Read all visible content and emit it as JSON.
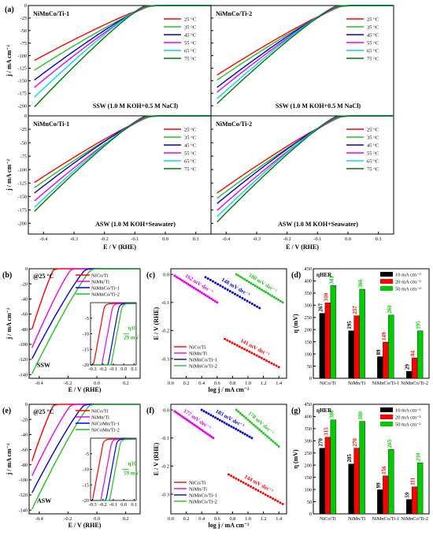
{
  "figure": {
    "panel_letters": [
      "(a)",
      "(b)",
      "(c)",
      "(d)",
      "(e)",
      "(f)",
      "(g)"
    ]
  },
  "colors": {
    "25": "#ff0000",
    "35": "#22c322",
    "45": "#0000dd",
    "55": "#ee00ee",
    "65": "#00dddd",
    "75": "#007a00",
    "NiCo/Ti": "#ff0000",
    "NiMn/Ti": "#ee00ee",
    "NiMnCo/Ti-1": "#0000dd",
    "NiMnCo/Ti-2": "#22c322",
    "bar10": "#000000",
    "bar20": "#ff0000",
    "bar50": "#00cc00"
  },
  "chart_data": [
    {
      "id": "a1",
      "type": "line",
      "title": "NiMnCo/Ti-1",
      "subtitle": "SSW (1.0 M KOH+0.5 M NaCl)",
      "ylabel": "j / mA cm⁻²",
      "xlim": [
        -0.45,
        0.15
      ],
      "ylim": [
        -220,
        0
      ],
      "xticks": [],
      "yticks": [
        0,
        -25,
        -50,
        -75,
        -100,
        -125,
        -150,
        -175,
        -200
      ],
      "legend_position": "top-right",
      "series": [
        {
          "name": "25 °C",
          "onset": -0.05,
          "jmin": -110
        },
        {
          "name": "35 °C",
          "onset": -0.05,
          "jmin": -130
        },
        {
          "name": "45 °C",
          "onset": -0.06,
          "jmin": -150
        },
        {
          "name": "55 °C",
          "onset": -0.06,
          "jmin": -165
        },
        {
          "name": "65 °C",
          "onset": -0.07,
          "jmin": -185
        },
        {
          "name": "75 °C",
          "onset": -0.07,
          "jmin": -205
        }
      ]
    },
    {
      "id": "a2",
      "type": "line",
      "title": "NiMnCo/Ti-2",
      "subtitle": "SSW (1.0 M KOH+0.5 M NaCl)",
      "xlim": [
        -0.45,
        0.15
      ],
      "ylim": [
        -220,
        0
      ],
      "xticks": [],
      "yticks": [],
      "legend_position": "top-right",
      "series": [
        {
          "name": "25 °C",
          "onset": -0.02,
          "jmin": -140
        },
        {
          "name": "35 °C",
          "onset": -0.02,
          "jmin": -150
        },
        {
          "name": "45 °C",
          "onset": -0.03,
          "jmin": -165
        },
        {
          "name": "55 °C",
          "onset": -0.03,
          "jmin": -175
        },
        {
          "name": "65 °C",
          "onset": -0.04,
          "jmin": -188
        },
        {
          "name": "75 °C",
          "onset": -0.04,
          "jmin": -198
        }
      ]
    },
    {
      "id": "a3",
      "type": "line",
      "title": "NiMnCo/Ti-1",
      "subtitle": "ASW (1.0 M KOH+Seawater)",
      "ylabel": "j / mA cm⁻²",
      "xlabel": "E / V (RHE)",
      "xlim": [
        -0.45,
        0.15
      ],
      "ylim": [
        -220,
        0
      ],
      "xticks": [
        -0.4,
        -0.3,
        -0.2,
        -0.1,
        0.0,
        0.1
      ],
      "yticks": [
        0,
        -25,
        -50,
        -75,
        -100,
        -125,
        -150,
        -175,
        -200
      ],
      "legend_position": "top-right",
      "series": [
        {
          "name": "25 °C",
          "onset": -0.05,
          "jmin": -125
        },
        {
          "name": "35 °C",
          "onset": -0.05,
          "jmin": -135
        },
        {
          "name": "45 °C",
          "onset": -0.06,
          "jmin": -145
        },
        {
          "name": "55 °C",
          "onset": -0.06,
          "jmin": -160
        },
        {
          "name": "65 °C",
          "onset": -0.07,
          "jmin": -172
        },
        {
          "name": "75 °C",
          "onset": -0.07,
          "jmin": -180
        }
      ]
    },
    {
      "id": "a4",
      "type": "line",
      "title": "NiMnCo/Ti-2",
      "subtitle": "ASW (1.0 M KOH+Seawater)",
      "xlabel": "E / V (RHE)",
      "xlim": [
        -0.45,
        0.15
      ],
      "ylim": [
        -220,
        0
      ],
      "xticks": [
        -0.4,
        -0.3,
        -0.2,
        -0.1,
        0.0,
        0.1
      ],
      "yticks": [],
      "legend_position": "top-right",
      "series": [
        {
          "name": "25 °C",
          "onset": -0.02,
          "jmin": -145
        },
        {
          "name": "35 °C",
          "onset": -0.02,
          "jmin": -155
        },
        {
          "name": "45 °C",
          "onset": -0.03,
          "jmin": -165
        },
        {
          "name": "55 °C",
          "onset": -0.03,
          "jmin": -178
        },
        {
          "name": "65 °C",
          "onset": -0.04,
          "jmin": -190
        },
        {
          "name": "75 °C",
          "onset": -0.04,
          "jmin": -200
        }
      ]
    },
    {
      "id": "b",
      "type": "line",
      "title": "@25 °C",
      "subtitle": "SSW",
      "ylabel": "j / mA cm⁻²",
      "xlabel": "E / V (RHE)",
      "xlim": [
        -0.47,
        0.3
      ],
      "ylim": [
        -145,
        0
      ],
      "xticks": [
        -0.4,
        -0.2,
        0.0,
        0.2
      ],
      "yticks": [
        0,
        -20,
        -40,
        -60,
        -80,
        -100,
        -120,
        -140
      ],
      "legend_position": "top-right",
      "series": [
        {
          "name": "NiCo/Ti",
          "onset": -0.3,
          "jmin": -80
        },
        {
          "name": "NiMn/Ti",
          "onset": -0.18,
          "jmin": -105
        },
        {
          "name": "NiMnCo/Ti-1",
          "onset": -0.08,
          "jmin": -120
        },
        {
          "name": "NiMnCo/Ti-2",
          "onset": -0.04,
          "jmin": -140
        }
      ],
      "inset": {
        "xlim": [
          -0.32,
          0.12
        ],
        "ylim": [
          -20,
          0
        ],
        "xticks": [
          -0.3,
          -0.2,
          -0.1,
          0.0,
          0.1
        ],
        "yticks": [
          -5,
          -10,
          -15,
          -20
        ],
        "label": "η10",
        "annotation": "29 mV",
        "onsets": [
          -0.19,
          -0.11,
          -0.05,
          -0.02
        ]
      }
    },
    {
      "id": "c",
      "type": "line",
      "ylabel": "E / V (RHE)",
      "xlabel": "log j / mA cm⁻²",
      "xlim": [
        0.0,
        1.5
      ],
      "ylim": [
        -0.37,
        0.02
      ],
      "xticks": [
        0.0,
        0.2,
        0.4,
        0.6,
        0.8,
        1.0,
        1.2,
        1.4
      ],
      "yticks": [
        0.0,
        -0.1,
        -0.2,
        -0.3
      ],
      "legend_position": "bottom-left",
      "series": [
        {
          "name": "NiCo/Ti",
          "x": [
            0.7,
            1.4
          ],
          "y": [
            -0.23,
            -0.33
          ],
          "slope_label": "141 mV dec⁻¹"
        },
        {
          "name": "NiMn/Ti",
          "x": [
            0.05,
            0.6
          ],
          "y": [
            -0.005,
            -0.1
          ],
          "slope_label": "162 mV dec⁻¹"
        },
        {
          "name": "NiMnCo/Ti-1",
          "x": [
            0.45,
            1.15
          ],
          "y": [
            -0.01,
            -0.12
          ],
          "slope_label": "148 mV dec⁻¹"
        },
        {
          "name": "NiMnCo/Ti-2",
          "x": [
            0.85,
            1.45
          ],
          "y": [
            0.0,
            -0.1
          ],
          "slope_label": "180 mV dec⁻¹"
        }
      ]
    },
    {
      "id": "d",
      "type": "bar",
      "title": "ηHER",
      "ylabel": "η (mV)",
      "categories": [
        "NiCo/Ti",
        "NiMn/Ti",
        "NiMnCo/Ti-1",
        "NiMnCo/Ti-2"
      ],
      "ylim": [
        0,
        450
      ],
      "yticks": [
        0,
        50,
        100,
        150,
        200,
        250,
        300,
        350,
        400,
        450
      ],
      "legend_position": "top-right",
      "series": [
        {
          "name": "10 mA cm⁻²",
          "values": [
            267,
            195,
            89,
            29
          ]
        },
        {
          "name": "20 mA cm⁻²",
          "values": [
            310,
            257,
            149,
            84
          ]
        },
        {
          "name": "50 mA cm⁻²",
          "values": [
            381,
            366,
            260,
            195
          ]
        }
      ]
    },
    {
      "id": "e",
      "type": "line",
      "title": "@25 °C",
      "subtitle": "ASW",
      "ylabel": "j / mA cm⁻²",
      "xlabel": "E / V (RHE)",
      "xlim": [
        -0.47,
        0.3
      ],
      "ylim": [
        -145,
        0
      ],
      "xticks": [
        -0.4,
        -0.2,
        0.0,
        0.2
      ],
      "yticks": [
        0,
        -20,
        -40,
        -60,
        -80,
        -100,
        -120,
        -140
      ],
      "legend_position": "top-right",
      "series": [
        {
          "name": "NiCo/Ti",
          "onset": -0.3,
          "jmin": -75
        },
        {
          "name": "NiMn/Ti",
          "onset": -0.18,
          "jmin": -95
        },
        {
          "name": "NiCoMn/Ti-1",
          "onset": -0.09,
          "jmin": -118
        },
        {
          "name": "NiCoMn/Ti-2",
          "onset": -0.05,
          "jmin": -140
        }
      ],
      "inset": {
        "xlim": [
          -0.32,
          0.12
        ],
        "ylim": [
          -20,
          0
        ],
        "xticks": [
          -0.3,
          -0.2,
          -0.1,
          0.0,
          0.1
        ],
        "yticks": [
          -5,
          -10,
          -15,
          -20
        ],
        "label": "η10",
        "annotation": "59 mV",
        "onsets": [
          -0.2,
          -0.12,
          -0.07,
          -0.035
        ]
      }
    },
    {
      "id": "f",
      "type": "line",
      "ylabel": "E / V (RHE)",
      "xlabel": "log j / mA cm⁻²",
      "xlim": [
        0.0,
        1.5
      ],
      "ylim": [
        -0.37,
        0.02
      ],
      "xticks": [
        0.0,
        0.2,
        0.4,
        0.6,
        0.8,
        1.0,
        1.2,
        1.4
      ],
      "yticks": [
        0.0,
        -0.1,
        -0.2,
        -0.3
      ],
      "legend_position": "bottom-left",
      "series": [
        {
          "name": "NiCo/Ti",
          "x": [
            0.75,
            1.45
          ],
          "y": [
            -0.23,
            -0.335
          ],
          "slope_label": "144 mV dec⁻¹"
        },
        {
          "name": "NiMn/Ti",
          "x": [
            0.05,
            0.55
          ],
          "y": [
            -0.005,
            -0.1
          ],
          "slope_label": "177 mV dec⁻¹"
        },
        {
          "name": "NiMnCo/Ti-1",
          "x": [
            0.4,
            1.05
          ],
          "y": [
            0.0,
            -0.1
          ],
          "slope_label": "183 mV dec⁻¹"
        },
        {
          "name": "NiMnCo/Ti-2",
          "x": [
            0.85,
            1.4
          ],
          "y": [
            0.0,
            -0.13
          ],
          "slope_label": "170 mV dec⁻¹"
        }
      ]
    },
    {
      "id": "g",
      "type": "bar",
      "title": "ηHER",
      "ylabel": "η (mV)",
      "categories": [
        "NiCo/Ti",
        "NiMn/Ti",
        "NiMnCo/Ti-1",
        "NiMnCo/Ti-2"
      ],
      "ylim": [
        0,
        450
      ],
      "yticks": [
        0,
        50,
        100,
        150,
        200,
        250,
        300,
        350,
        400,
        450
      ],
      "legend_position": "top-right",
      "series": [
        {
          "name": "10 mA cm⁻²",
          "values": [
            270,
            205,
            99,
            59
          ]
        },
        {
          "name": "20 mA cm⁻²",
          "values": [
            315,
            270,
            156,
            111
          ]
        },
        {
          "name": "50 mA cm⁻²",
          "values": [
            386,
            380,
            265,
            210
          ]
        }
      ]
    }
  ]
}
